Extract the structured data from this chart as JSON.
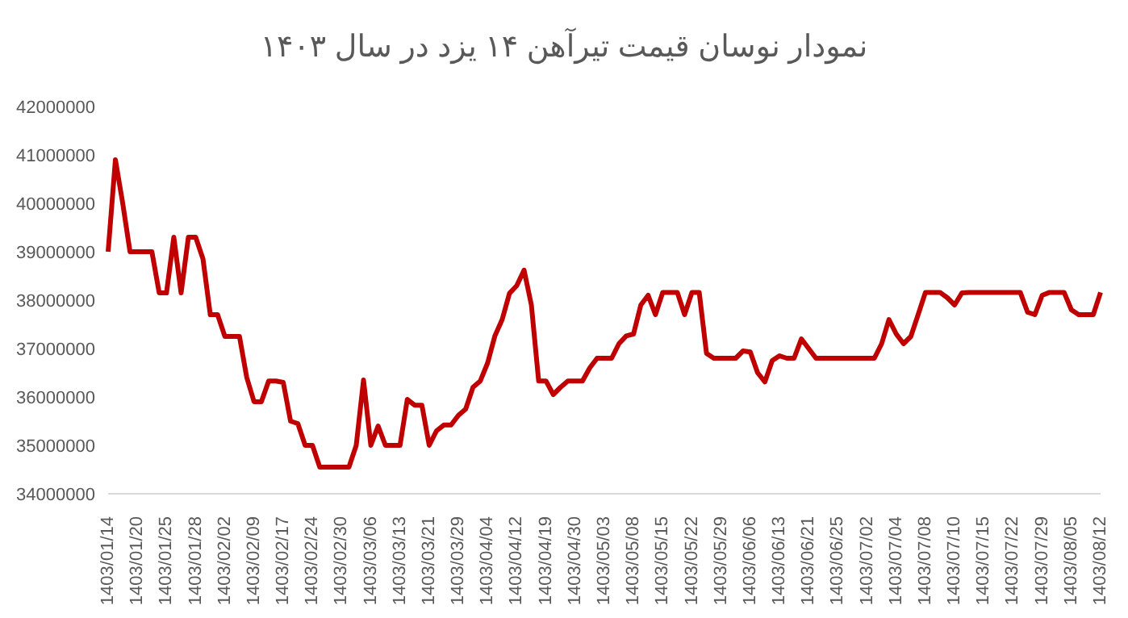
{
  "chart_data": {
    "type": "line",
    "title": "نمودار نوسان قیمت تیرآهن ۱۴ یزد در سال ۱۴۰۳",
    "categories": [
      "1403/01/14",
      null,
      null,
      null,
      "1403/01/20",
      null,
      null,
      null,
      "1403/01/25",
      null,
      null,
      null,
      "1403/01/28",
      null,
      null,
      null,
      "1403/02/02",
      null,
      null,
      null,
      "1403/02/09",
      null,
      null,
      null,
      "1403/02/17",
      null,
      null,
      null,
      "1403/02/24",
      null,
      null,
      null,
      "1403/02/30",
      null,
      null,
      null,
      "1403/03/06",
      null,
      null,
      null,
      "1403/03/13",
      null,
      null,
      null,
      "1403/03/21",
      null,
      null,
      null,
      "1403/03/29",
      null,
      null,
      null,
      "1403/04/04",
      null,
      null,
      null,
      "1403/04/12",
      null,
      null,
      null,
      "1403/04/19",
      null,
      null,
      null,
      "1403/04/30",
      null,
      null,
      null,
      "1403/05/03",
      null,
      null,
      null,
      "1403/05/08",
      null,
      null,
      null,
      "1403/05/15",
      null,
      null,
      null,
      "1403/05/22",
      null,
      null,
      null,
      "1403/05/29",
      null,
      null,
      null,
      "1403/06/06",
      null,
      null,
      null,
      "1403/06/13",
      null,
      null,
      null,
      "1403/06/21",
      null,
      null,
      null,
      "1403/06/25",
      null,
      null,
      null,
      "1403/07/02",
      null,
      null,
      null,
      "1403/07/04",
      null,
      null,
      null,
      "1403/07/08",
      null,
      null,
      null,
      "1403/07/10",
      null,
      null,
      null,
      "1403/07/15",
      null,
      null,
      null,
      "1403/07/22",
      null,
      null,
      null,
      "1403/07/29",
      null,
      null,
      null,
      "1403/08/05",
      null,
      null,
      null,
      "1403/08/12"
    ],
    "values": [
      39000000,
      40900000,
      40000000,
      39000000,
      39000000,
      39000000,
      39000000,
      38150000,
      38150000,
      39300000,
      38150000,
      39300000,
      39300000,
      38850000,
      37700000,
      37700000,
      37250000,
      37250000,
      37250000,
      36400000,
      35900000,
      35900000,
      36330000,
      36330000,
      36300000,
      35500000,
      35450000,
      35000000,
      35000000,
      34550000,
      34550000,
      34550000,
      34550000,
      34550000,
      35000000,
      36350000,
      35000000,
      35400000,
      35000000,
      35000000,
      35000000,
      35950000,
      35830000,
      35830000,
      35000000,
      35300000,
      35420000,
      35420000,
      35620000,
      35750000,
      36200000,
      36330000,
      36700000,
      37260000,
      37600000,
      38140000,
      38300000,
      38620000,
      37900000,
      36330000,
      36330000,
      36050000,
      36200000,
      36330000,
      36330000,
      36330000,
      36600000,
      36800000,
      36800000,
      36800000,
      37100000,
      37260000,
      37300000,
      37900000,
      38100000,
      37700000,
      38160000,
      38160000,
      38160000,
      37700000,
      38160000,
      38160000,
      36900000,
      36800000,
      36800000,
      36800000,
      36800000,
      36950000,
      36930000,
      36500000,
      36310000,
      36750000,
      36850000,
      36800000,
      36800000,
      37200000,
      37000000,
      36800000,
      36800000,
      36800000,
      36800000,
      36800000,
      36800000,
      36800000,
      36800000,
      36800000,
      37100000,
      37600000,
      37300000,
      37100000,
      37250000,
      37700000,
      38160000,
      38160000,
      38160000,
      38050000,
      37900000,
      38150000,
      38160000,
      38160000,
      38160000,
      38160000,
      38160000,
      38160000,
      38160000,
      38160000,
      37750000,
      37700000,
      38100000,
      38160000,
      38160000,
      38160000,
      37800000,
      37700000,
      37700000,
      37700000,
      38160000
    ],
    "color": "#c00000",
    "ylim": [
      34000000,
      42000000
    ],
    "yticks": [
      34000000,
      35000000,
      36000000,
      37000000,
      38000000,
      39000000,
      40000000,
      41000000,
      42000000
    ]
  }
}
